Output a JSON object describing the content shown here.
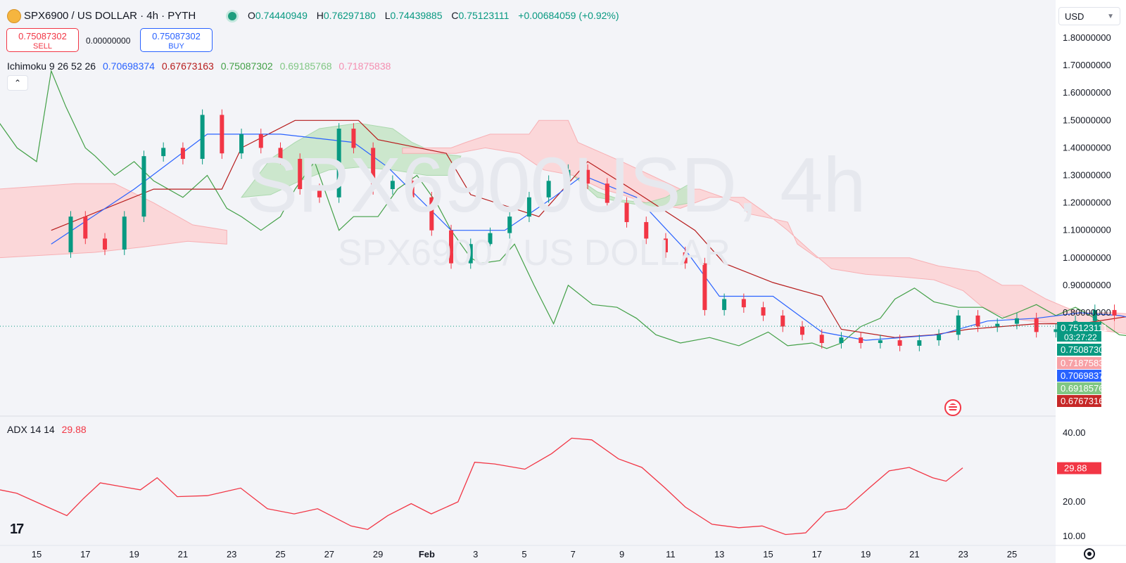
{
  "header": {
    "symbol_title": "SPX6900 / US DOLLAR · 4h · PYTH",
    "ohlc": {
      "o_label": "O",
      "o_value": "0.74440949",
      "h_label": "H",
      "h_value": "0.76297180",
      "l_label": "L",
      "l_value": "0.74439885",
      "c_label": "C",
      "c_value": "0.75123111",
      "change": "+0.00684059 (+0.92%)"
    }
  },
  "trade": {
    "sell_price": "0.75087302",
    "sell_label": "SELL",
    "spread": "0.00000000",
    "buy_price": "0.75087302",
    "buy_label": "BUY"
  },
  "ichimoku_legend": {
    "name": "Ichimoku 9 26 52 26",
    "conversion": "0.70698374",
    "base": "0.67673163",
    "lagging": "0.75087302",
    "lead_a": "0.69185768",
    "lead_b": "0.71875838"
  },
  "adx_legend": {
    "name": "ADX 14 14",
    "value": "29.88"
  },
  "currency_select": "USD",
  "watermark": {
    "big": "SPX6900USD, 4h",
    "small": "SPX6900 / US DOLLAR"
  },
  "colors": {
    "up": "#089981",
    "down": "#f23645",
    "conversion": "#2962ff",
    "base": "#b71c1c",
    "lagging": "#43a047",
    "lead_a": "#a5d6a7",
    "lead_b": "#faa1a4",
    "adx": "#f23645",
    "kumo_bull": "#c8e6c9",
    "kumo_bear": "#fcd4d6"
  },
  "price_labels": [
    {
      "text": "0.75123111",
      "sub": "03:27:22",
      "color": "#089981"
    },
    {
      "text": "0.75087302",
      "color": "#089981"
    },
    {
      "text": "0.71875838",
      "color": "#f7a1a6"
    },
    {
      "text": "0.70698374",
      "color": "#2962ff"
    },
    {
      "text": "0.69185768",
      "color": "#81c784"
    },
    {
      "text": "0.67673163",
      "color": "#c62828"
    }
  ],
  "adx_price_label": "29.88",
  "chart_data": [
    {
      "type": "candlestick",
      "title": "SPX6900 / US DOLLAR · 4h · PYTH",
      "y_axis": {
        "ticks": [
          "1.80000000",
          "1.70000000",
          "1.60000000",
          "1.50000000",
          "1.40000000",
          "1.30000000",
          "1.20000000",
          "1.10000000",
          "1.00000000",
          "0.90000000",
          "0.80000000"
        ],
        "range": [
          0.6,
          1.85
        ]
      },
      "x_axis": {
        "labels": [
          "15",
          "17",
          "19",
          "21",
          "23",
          "25",
          "27",
          "29",
          "Feb",
          "3",
          "5",
          "7",
          "9",
          "11",
          "13",
          "15",
          "17",
          "19",
          "21",
          "23",
          "25"
        ],
        "index_range": [
          0,
          30
        ]
      },
      "close_series": [
        [
          0.3,
          1.02
        ],
        [
          0.7,
          1.15
        ],
        [
          1.0,
          1.07
        ],
        [
          1.4,
          1.03
        ],
        [
          1.8,
          1.15
        ],
        [
          2.2,
          1.37
        ],
        [
          2.6,
          1.4
        ],
        [
          3.0,
          1.36
        ],
        [
          3.4,
          1.52
        ],
        [
          3.8,
          1.38
        ],
        [
          4.2,
          1.45
        ],
        [
          4.6,
          1.4
        ],
        [
          5.0,
          1.36
        ],
        [
          5.4,
          1.25
        ],
        [
          5.8,
          1.22
        ],
        [
          6.2,
          1.47
        ],
        [
          6.5,
          1.4
        ],
        [
          6.9,
          1.25
        ],
        [
          7.3,
          1.28
        ],
        [
          7.7,
          1.22
        ],
        [
          8.1,
          1.1
        ],
        [
          8.5,
          0.98
        ],
        [
          8.9,
          1.05
        ],
        [
          9.3,
          1.09
        ],
        [
          9.7,
          1.15
        ],
        [
          10.1,
          1.22
        ],
        [
          10.5,
          1.28
        ],
        [
          10.9,
          1.32
        ],
        [
          11.3,
          1.27
        ],
        [
          11.7,
          1.2
        ],
        [
          12.1,
          1.13
        ],
        [
          12.5,
          1.07
        ],
        [
          12.9,
          1.02
        ],
        [
          13.3,
          0.98
        ],
        [
          13.7,
          0.81
        ],
        [
          14.1,
          0.85
        ],
        [
          14.5,
          0.82
        ],
        [
          14.9,
          0.79
        ],
        [
          15.3,
          0.75
        ],
        [
          15.7,
          0.72
        ],
        [
          16.1,
          0.69
        ],
        [
          16.5,
          0.71
        ],
        [
          16.9,
          0.69
        ],
        [
          17.3,
          0.7
        ],
        [
          17.7,
          0.68
        ],
        [
          18.1,
          0.7
        ],
        [
          18.5,
          0.72
        ],
        [
          18.9,
          0.79
        ],
        [
          19.3,
          0.75
        ],
        [
          19.7,
          0.76
        ],
        [
          20.1,
          0.78
        ],
        [
          20.5,
          0.73
        ],
        [
          20.9,
          0.74
        ],
        [
          21.3,
          0.77
        ],
        [
          21.7,
          0.81
        ],
        [
          22.1,
          0.79
        ],
        [
          22.5,
          0.77
        ],
        [
          22.9,
          0.76
        ],
        [
          23.3,
          0.74
        ],
        [
          23.7,
          0.73
        ],
        [
          24.1,
          0.71
        ],
        [
          24.5,
          0.69
        ],
        [
          24.9,
          0.69
        ],
        [
          25.3,
          0.7
        ],
        [
          25.7,
          0.74
        ],
        [
          26.1,
          0.75
        ],
        [
          26.3,
          0.7512
        ]
      ],
      "ichimoku": {
        "conversion": [
          [
            0.3,
            1.05
          ],
          [
            2.0,
            1.25
          ],
          [
            3.5,
            1.45
          ],
          [
            5.0,
            1.45
          ],
          [
            6.5,
            1.42
          ],
          [
            7.2,
            1.33
          ],
          [
            8.5,
            1.1
          ],
          [
            9.6,
            1.1
          ],
          [
            10.6,
            1.22
          ],
          [
            11.2,
            1.3
          ],
          [
            12.3,
            1.22
          ],
          [
            13.3,
            1.03
          ],
          [
            14.0,
            0.86
          ],
          [
            15.1,
            0.86
          ],
          [
            16.1,
            0.73
          ],
          [
            17.0,
            0.7
          ],
          [
            18.5,
            0.72
          ],
          [
            19.5,
            0.77
          ],
          [
            20.5,
            0.78
          ],
          [
            21.4,
            0.8
          ],
          [
            22.2,
            0.79
          ],
          [
            23.1,
            0.76
          ],
          [
            24.2,
            0.71
          ],
          [
            24.9,
            0.69
          ],
          [
            25.6,
            0.71
          ],
          [
            26.3,
            0.707
          ]
        ],
        "base": [
          [
            0.3,
            1.1
          ],
          [
            2.4,
            1.25
          ],
          [
            3.8,
            1.25
          ],
          [
            4.2,
            1.4
          ],
          [
            5.3,
            1.5
          ],
          [
            6.6,
            1.5
          ],
          [
            7.0,
            1.43
          ],
          [
            8.4,
            1.38
          ],
          [
            8.9,
            1.23
          ],
          [
            10.3,
            1.15
          ],
          [
            11.3,
            1.35
          ],
          [
            12.2,
            1.25
          ],
          [
            13.5,
            1.1
          ],
          [
            14.1,
            0.98
          ],
          [
            15.1,
            0.91
          ],
          [
            16.1,
            0.86
          ],
          [
            16.5,
            0.74
          ],
          [
            17.6,
            0.71
          ],
          [
            18.4,
            0.72
          ],
          [
            19.1,
            0.74
          ],
          [
            20.5,
            0.76
          ],
          [
            21.4,
            0.76
          ],
          [
            22.5,
            0.79
          ],
          [
            23.5,
            0.79
          ],
          [
            24.5,
            0.75
          ],
          [
            25.6,
            0.7
          ],
          [
            26.3,
            0.6767
          ]
        ]
      },
      "adx": {
        "ticks": [
          "40.00",
          "20.00",
          "10.00"
        ],
        "range": [
          5,
          45
        ],
        "series": [
          [
            0.0,
            23.5
          ],
          [
            0.5,
            22.5
          ],
          [
            1.3,
            19.0
          ],
          [
            2.0,
            16.0
          ],
          [
            2.5,
            21.0
          ],
          [
            3.0,
            25.5
          ],
          [
            3.6,
            24.5
          ],
          [
            4.2,
            23.5
          ],
          [
            4.7,
            27.0
          ],
          [
            5.3,
            21.5
          ],
          [
            6.2,
            21.8
          ],
          [
            7.2,
            24.0
          ],
          [
            8.0,
            18.0
          ],
          [
            8.8,
            16.5
          ],
          [
            9.5,
            18.0
          ],
          [
            10.5,
            13.0
          ],
          [
            11.0,
            12.0
          ],
          [
            11.6,
            16.0
          ],
          [
            12.3,
            19.5
          ],
          [
            12.9,
            16.5
          ],
          [
            13.7,
            20.0
          ],
          [
            14.2,
            31.5
          ],
          [
            14.8,
            31.0
          ],
          [
            15.7,
            29.5
          ],
          [
            16.5,
            34.0
          ],
          [
            17.1,
            38.5
          ],
          [
            17.7,
            38.0
          ],
          [
            18.5,
            32.5
          ],
          [
            19.2,
            30.0
          ],
          [
            19.9,
            24.0
          ],
          [
            20.5,
            18.5
          ],
          [
            21.3,
            13.5
          ],
          [
            22.1,
            12.5
          ],
          [
            22.8,
            13.0
          ],
          [
            23.5,
            10.5
          ],
          [
            24.1,
            11.0
          ],
          [
            24.7,
            17.0
          ],
          [
            25.3,
            18.0
          ],
          [
            26.0,
            24.0
          ],
          [
            26.6,
            29.0
          ],
          [
            27.2,
            30.0
          ],
          [
            27.9,
            27.0
          ],
          [
            28.3,
            26.0
          ],
          [
            28.8,
            29.88
          ]
        ]
      }
    }
  ]
}
